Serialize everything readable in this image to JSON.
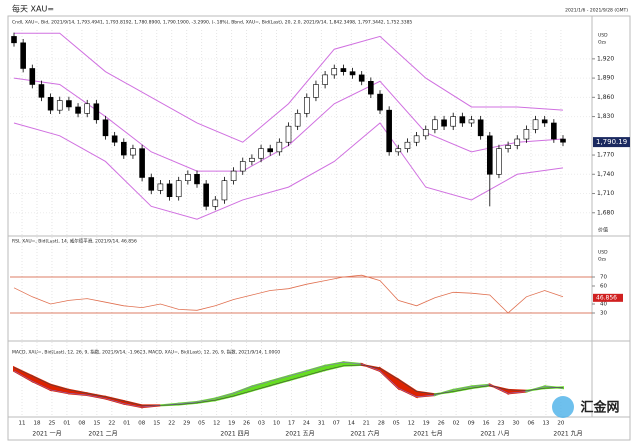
{
  "chart_data": {
    "type": "candlestick",
    "title": "每天 XAU=",
    "date_range": "2021/1/6 - 2021/9/28 (GMT)",
    "legend_text": "Cndl, XAU=, Bid, 2021/9/14, 1,793.4941, 1,793.8192, 1,780.8900, 1,790.1900, -3.2990, (-.18%), Bbnd, XAU=, Bid(Last), 20, 2.0, 2021/9/14, 1,842.3498, 1,797.3442, 1,752.3385",
    "units": [
      "USD",
      "Ozs"
    ],
    "axis_caption": "价值",
    "ylim": [
      1650,
      1965
    ],
    "yticks": [
      {
        "value": 1920,
        "label": "1,920"
      },
      {
        "value": 1890,
        "label": "1,890"
      },
      {
        "value": 1860,
        "label": "1,860"
      },
      {
        "value": 1830,
        "label": "1,830"
      },
      {
        "value": 1770,
        "label": "1,770"
      },
      {
        "value": 1740,
        "label": "1,740"
      },
      {
        "value": 1710,
        "label": "1,710"
      },
      {
        "value": 1680,
        "label": "1,680"
      }
    ],
    "last_price": {
      "value": 1790.19,
      "label": "1,790.19"
    },
    "up_color": "#ffffff",
    "down_color": "#000000",
    "open": [
      1955,
      1945,
      1905,
      1880,
      1860,
      1840,
      1855,
      1845,
      1835,
      1850,
      1825,
      1800,
      1790,
      1770,
      1780,
      1735,
      1715,
      1725,
      1705,
      1730,
      1740,
      1725,
      1690,
      1700,
      1730,
      1745,
      1760,
      1765,
      1780,
      1775,
      1790,
      1815,
      1835,
      1860,
      1880,
      1895,
      1905,
      1900,
      1895,
      1885,
      1865,
      1840,
      1775,
      1780,
      1790,
      1800,
      1810,
      1825,
      1815,
      1830,
      1820,
      1825,
      1800,
      1740,
      1780,
      1785,
      1795,
      1810,
      1825,
      1820,
      1795
    ],
    "high": [
      1961,
      1951,
      1911,
      1886,
      1866,
      1861,
      1861,
      1851,
      1856,
      1856,
      1831,
      1806,
      1796,
      1786,
      1786,
      1741,
      1731,
      1731,
      1736,
      1746,
      1746,
      1731,
      1706,
      1736,
      1751,
      1766,
      1771,
      1786,
      1786,
      1796,
      1821,
      1841,
      1866,
      1886,
      1901,
      1911,
      1911,
      1906,
      1901,
      1891,
      1871,
      1846,
      1786,
      1796,
      1806,
      1816,
      1831,
      1831,
      1836,
      1836,
      1831,
      1831,
      1806,
      1786,
      1791,
      1801,
      1816,
      1831,
      1831,
      1826,
      1801
    ],
    "low": [
      1939,
      1899,
      1874,
      1854,
      1834,
      1834,
      1839,
      1829,
      1829,
      1819,
      1794,
      1784,
      1764,
      1764,
      1729,
      1709,
      1709,
      1699,
      1699,
      1724,
      1719,
      1684,
      1684,
      1694,
      1724,
      1739,
      1754,
      1759,
      1769,
      1769,
      1784,
      1809,
      1829,
      1854,
      1874,
      1889,
      1894,
      1889,
      1879,
      1859,
      1834,
      1769,
      1769,
      1774,
      1784,
      1794,
      1804,
      1809,
      1809,
      1814,
      1814,
      1794,
      1690,
      1734,
      1774,
      1779,
      1789,
      1804,
      1814,
      1789,
      1784
    ],
    "close": [
      1945,
      1905,
      1880,
      1860,
      1840,
      1855,
      1845,
      1835,
      1850,
      1825,
      1800,
      1790,
      1770,
      1780,
      1735,
      1715,
      1725,
      1705,
      1730,
      1740,
      1725,
      1690,
      1700,
      1730,
      1745,
      1760,
      1765,
      1780,
      1775,
      1790,
      1815,
      1835,
      1860,
      1880,
      1895,
      1905,
      1900,
      1895,
      1885,
      1865,
      1840,
      1775,
      1780,
      1790,
      1800,
      1810,
      1825,
      1815,
      1830,
      1820,
      1825,
      1800,
      1740,
      1780,
      1785,
      1795,
      1810,
      1825,
      1820,
      1795,
      1790
    ],
    "bands": {
      "color": "#d070e0",
      "x": [
        0,
        5,
        10,
        15,
        20,
        25,
        30,
        35,
        40,
        45,
        50,
        55,
        60
      ],
      "upper": [
        1960,
        1960,
        1900,
        1860,
        1820,
        1790,
        1850,
        1935,
        1955,
        1890,
        1845,
        1845,
        1840
      ],
      "middle": [
        1890,
        1880,
        1830,
        1775,
        1745,
        1745,
        1785,
        1850,
        1885,
        1805,
        1775,
        1790,
        1795
      ],
      "lower": [
        1820,
        1800,
        1760,
        1690,
        1670,
        1700,
        1720,
        1760,
        1820,
        1720,
        1700,
        1740,
        1750
      ]
    },
    "rsi": {
      "legend_text": "RSI, XAU=, Bid(Last), 14, 威尔德平滑, 2021/9/14, 46.856",
      "x": [
        0,
        2,
        4,
        6,
        8,
        10,
        12,
        14,
        16,
        18,
        20,
        22,
        24,
        26,
        28,
        30,
        32,
        34,
        36,
        38,
        40,
        42,
        44,
        46,
        48,
        50,
        52,
        54,
        56,
        58,
        60
      ],
      "values": [
        58,
        48,
        40,
        44,
        46,
        42,
        38,
        36,
        40,
        34,
        33,
        38,
        45,
        50,
        55,
        57,
        62,
        66,
        70,
        72,
        66,
        44,
        38,
        47,
        53,
        52,
        50,
        30,
        48,
        55,
        48
      ],
      "color": "#e07050",
      "ylim": [
        0,
        100
      ],
      "yticks": [
        70,
        60,
        40,
        30
      ],
      "levels": [
        70,
        30
      ],
      "level_color": "#d05030",
      "last": {
        "value": 46.856,
        "label": "46.856"
      }
    },
    "macd": {
      "legend_text": "MACD, XAU=, Bid(Last), 12, 26, 9, 指数, 2021/9/14, -1.9623, MACD, XAU=, Bid(Last), 12, 26, 9, 指数, 2021/9/14, 1.0000",
      "x": [
        0,
        2,
        4,
        6,
        8,
        10,
        12,
        14,
        16,
        18,
        20,
        22,
        24,
        26,
        28,
        30,
        32,
        34,
        36,
        38,
        40,
        42,
        44,
        46,
        48,
        50,
        52,
        54,
        56,
        58,
        60
      ],
      "values": [
        20,
        8,
        -2,
        -6,
        -8,
        -12,
        -18,
        -22,
        -20,
        -18,
        -16,
        -12,
        -6,
        2,
        8,
        14,
        20,
        26,
        30,
        28,
        20,
        0,
        -10,
        -8,
        -2,
        2,
        4,
        -6,
        -4,
        2,
        0
      ],
      "signal": [
        24,
        14,
        4,
        -2,
        -6,
        -10,
        -15,
        -20,
        -20,
        -19,
        -17,
        -14,
        -9,
        -3,
        3,
        9,
        15,
        21,
        26,
        27,
        23,
        10,
        -4,
        -7,
        -4,
        0,
        3,
        -2,
        -3,
        0,
        1
      ],
      "up_color": "#66dd22",
      "down_color": "#dd2200",
      "ylim": [
        -30,
        35
      ]
    },
    "day_labels": [
      "11",
      "18",
      "25",
      "01",
      "08",
      "15",
      "22",
      "01",
      "08",
      "15",
      "22",
      "29",
      "05",
      "12",
      "19",
      "26",
      "03",
      "10",
      "17",
      "24",
      "31",
      "07",
      "14",
      "21",
      "28",
      "05",
      "12",
      "19",
      "26",
      "02",
      "09",
      "16",
      "23",
      "30",
      "06",
      "13",
      "20"
    ],
    "month_labels": [
      "2021 一月",
      "2021 二月",
      "2021 四月",
      "2021 五月",
      "2021 六月",
      "2021 七月",
      "2021 八月",
      "2021 九月"
    ],
    "watermark": "汇金网"
  }
}
